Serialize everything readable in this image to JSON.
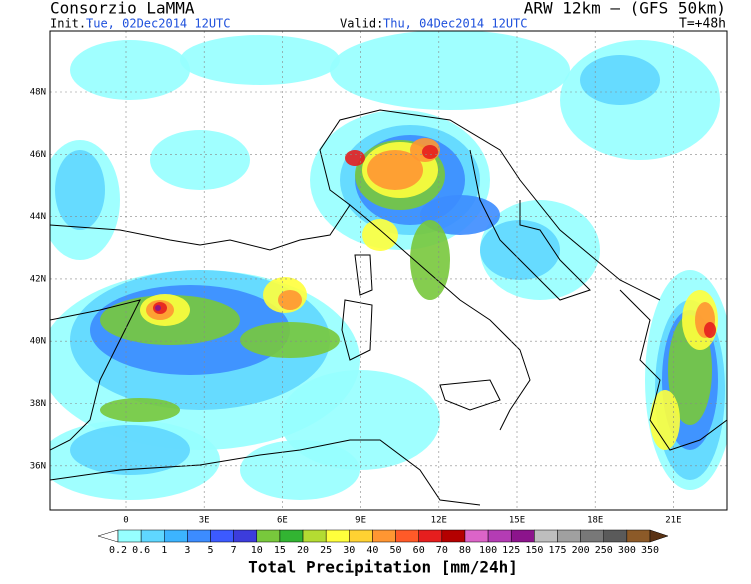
{
  "header": {
    "left_title": "Consorzio LaMMA",
    "right_title": "ARW 12km – (GFS 50km)",
    "init_label": "Init.:",
    "init_value": "Tue, 02Dec2014 12UTC",
    "valid_label": "Valid:",
    "valid_value": "Thu, 04Dec2014 12UTC",
    "lead_time": "T=+48h"
  },
  "map": {
    "lat_labels": [
      "48N",
      "46N",
      "44N",
      "42N",
      "40N",
      "38N",
      "36N"
    ],
    "lon_labels": [
      "0",
      "3E",
      "6E",
      "9E",
      "12E",
      "15E",
      "18E",
      "21E"
    ]
  },
  "colorbar": {
    "labels": [
      "0.2",
      "0.6",
      "1",
      "3",
      "5",
      "7",
      "10",
      "15",
      "20",
      "25",
      "30",
      "40",
      "50",
      "60",
      "70",
      "80",
      "100",
      "125",
      "150",
      "175",
      "200",
      "250",
      "300",
      "350"
    ],
    "colors": [
      "#ffffff",
      "#96ffff",
      "#5fd7ff",
      "#3cb4ff",
      "#3c8cff",
      "#3c5aff",
      "#3c3cdc",
      "#78c83c",
      "#32b432",
      "#b4dc32",
      "#ffff3c",
      "#ffd232",
      "#ff9632",
      "#ff5a28",
      "#e61e1e",
      "#b40000",
      "#dc64c8",
      "#b43cb4",
      "#8c148c",
      "#bebebe",
      "#a0a0a0",
      "#787878",
      "#5a5a5a",
      "#8c5a28",
      "#6e3c14",
      "#5a3214"
    ],
    "title": "Total Precipitation [mm/24h]"
  }
}
